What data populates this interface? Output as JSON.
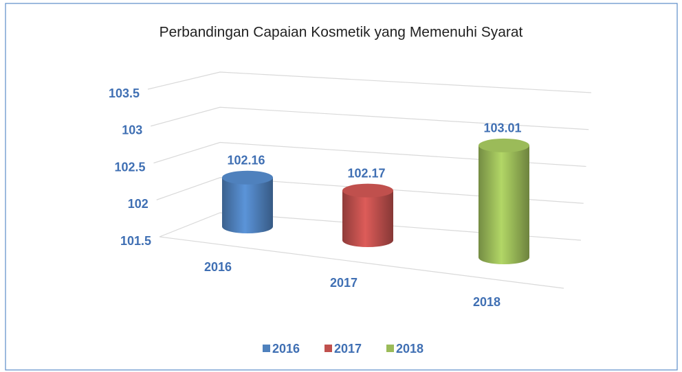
{
  "chart_data": {
    "type": "bar3d",
    "title": "Perbandingan Capaian Kosmetik yang Memenuhi Syarat",
    "categories": [
      "2016",
      "2017",
      "2018"
    ],
    "values": [
      102.16,
      102.17,
      103.01
    ],
    "colors": [
      "#4f81bd",
      "#c0504d",
      "#9bbb59"
    ],
    "ylim": [
      101.5,
      103.5
    ],
    "yticks": [
      101.5,
      102,
      102.5,
      103,
      103.5
    ],
    "grid": true,
    "legend": "bottom"
  }
}
